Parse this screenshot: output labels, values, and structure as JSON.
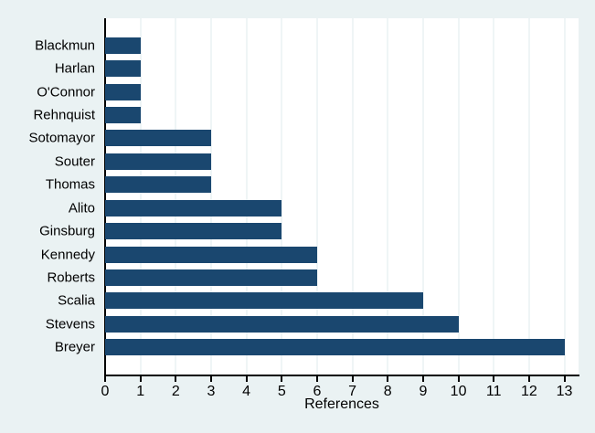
{
  "chart_data": {
    "type": "bar",
    "orientation": "horizontal",
    "title": "",
    "xlabel": "References",
    "ylabel": "",
    "categories": [
      "Blackmun",
      "Harlan",
      "O'Connor",
      "Rehnquist",
      "Sotomayor",
      "Souter",
      "Thomas",
      "Alito",
      "Ginsburg",
      "Kennedy",
      "Roberts",
      "Scalia",
      "Stevens",
      "Breyer"
    ],
    "values": [
      1,
      1,
      1,
      1,
      3,
      3,
      3,
      5,
      5,
      6,
      6,
      9,
      10,
      13
    ],
    "x_ticks": [
      0,
      1,
      2,
      3,
      4,
      5,
      6,
      7,
      8,
      9,
      10,
      11,
      12,
      13
    ],
    "xlim": [
      0,
      13.4
    ],
    "grid": true,
    "legend": "none",
    "colors": {
      "bar": "#1a476f",
      "figure_background": "#eaf2f3",
      "plot_background": "#ffffff",
      "gridline": "#dfebed",
      "axis": "#000000",
      "text": "#000000"
    }
  }
}
